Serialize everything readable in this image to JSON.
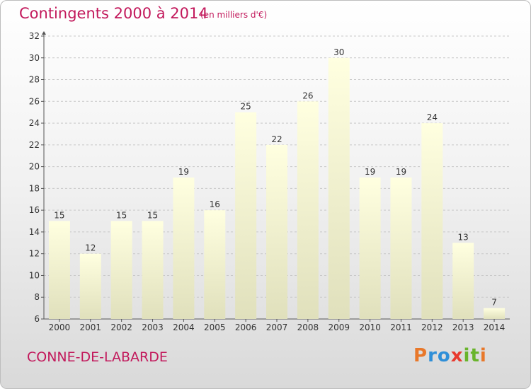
{
  "title": "Contingents 2000 à 2014",
  "unit": "(en milliers d'€)",
  "place": "CONNE-DE-LABARDE",
  "logo": {
    "text": "Proxiti",
    "letters": [
      {
        "char": "P",
        "color": "#e8782a"
      },
      {
        "char": "r",
        "color": "#2f8fd8"
      },
      {
        "char": "o",
        "color": "#2f8fd8"
      },
      {
        "char": "x",
        "color": "#e83a2e"
      },
      {
        "char": "i",
        "color": "#69b42b"
      },
      {
        "char": "t",
        "color": "#69b42b"
      },
      {
        "char": "i",
        "color": "#e8782a"
      }
    ]
  },
  "chart_data": {
    "type": "bar",
    "title": "Contingents 2000 à 2014",
    "categories": [
      "2000",
      "2001",
      "2002",
      "2003",
      "2004",
      "2005",
      "2006",
      "2007",
      "2008",
      "2009",
      "2010",
      "2011",
      "2012",
      "2013",
      "2014"
    ],
    "values": [
      15,
      12,
      15,
      15,
      19,
      16,
      25,
      22,
      26,
      30,
      19,
      19,
      24,
      13,
      7
    ],
    "ylim": [
      6,
      32
    ],
    "yticks": [
      6,
      8,
      10,
      12,
      14,
      16,
      18,
      20,
      22,
      24,
      26,
      28,
      30,
      32
    ],
    "grid": true,
    "bar_color_top": "#ffffe0",
    "bar_color_bottom": "#e0e0bc",
    "grid_color": "#c8c8c8"
  }
}
